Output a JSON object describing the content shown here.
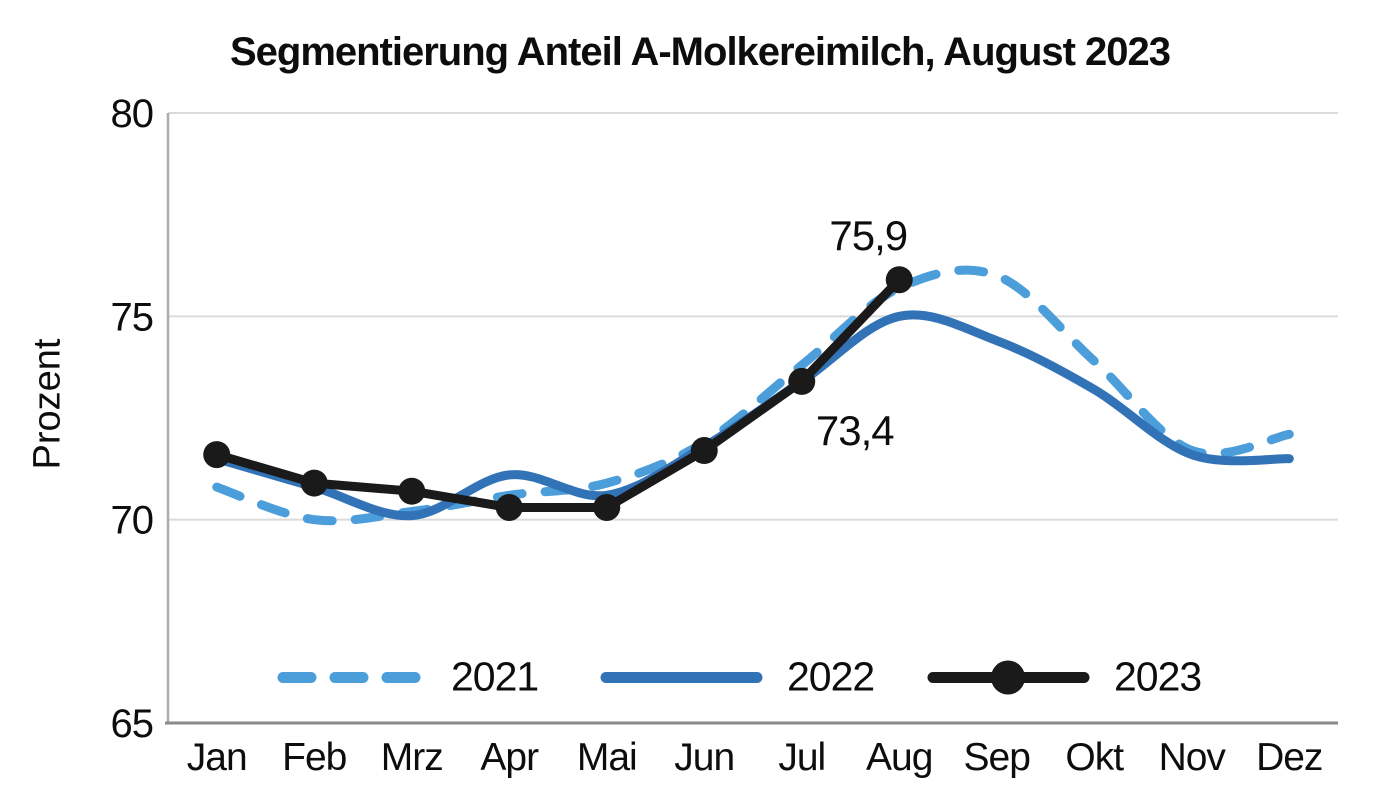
{
  "chart_data": {
    "type": "line",
    "title": "Segmentierung Anteil A-Molkereimilch, August 2023",
    "xlabel": "",
    "ylabel": "Prozent",
    "categories": [
      "Jan",
      "Feb",
      "Mrz",
      "Apr",
      "Mai",
      "Jun",
      "Jul",
      "Aug",
      "Sep",
      "Okt",
      "Nov",
      "Dez"
    ],
    "ylim": [
      65,
      80
    ],
    "y_ticks": [
      80,
      75,
      70,
      65
    ],
    "grid": true,
    "legend_position": "bottom-inside",
    "series": [
      {
        "name": "2021",
        "style": "dashed",
        "smooth": true,
        "color": "#4C9EDB",
        "values": [
          70.8,
          70.0,
          70.2,
          70.6,
          70.9,
          71.9,
          73.8,
          75.7,
          76.0,
          73.9,
          71.7,
          72.1
        ]
      },
      {
        "name": "2022",
        "style": "solid",
        "smooth": true,
        "color": "#3273B7",
        "values": [
          71.5,
          70.8,
          70.1,
          71.1,
          70.6,
          71.8,
          73.4,
          75.0,
          74.4,
          73.2,
          71.6,
          71.5
        ]
      },
      {
        "name": "2023",
        "style": "solid-markers",
        "smooth": false,
        "color": "#1A1A1A",
        "values": [
          71.6,
          70.9,
          70.7,
          70.3,
          70.3,
          71.7,
          73.4,
          75.9
        ]
      }
    ],
    "annotations": [
      {
        "text": "75,9",
        "series": "2023",
        "category": "Aug",
        "placement": "above"
      },
      {
        "text": "73,4",
        "series": "2023",
        "category": "Jul",
        "placement": "below-right"
      }
    ],
    "colors": {
      "grid": "#DBDBDB",
      "axis_left": "#ACACAC",
      "axis_bottom": "#8A8A8A",
      "text": "#0D0D0D"
    }
  }
}
